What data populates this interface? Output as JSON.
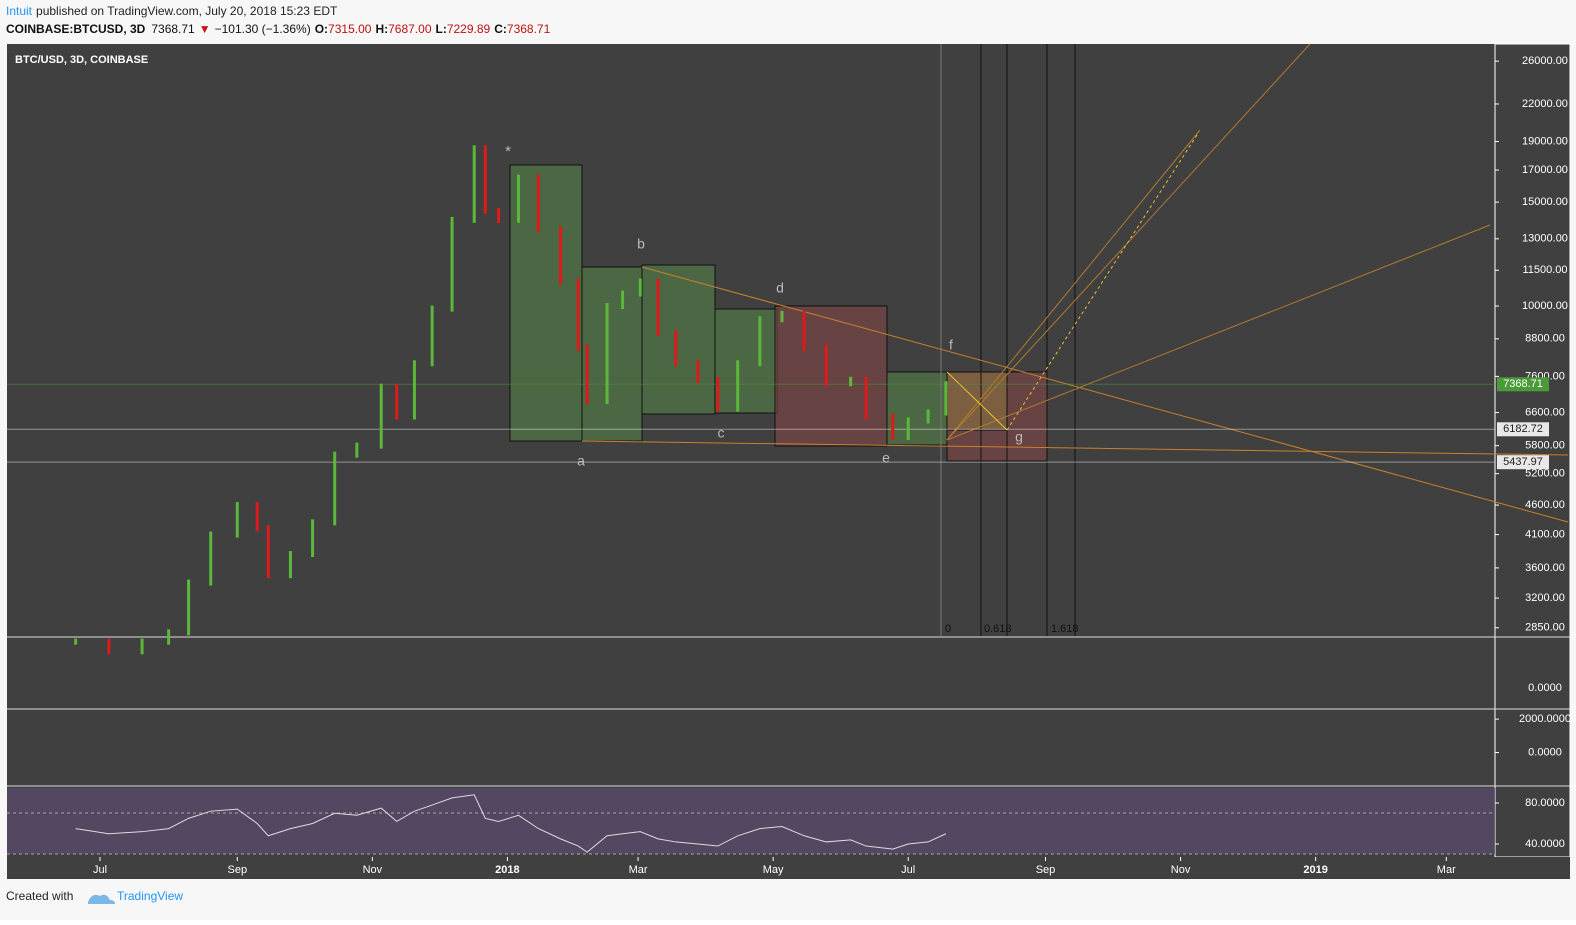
{
  "header": {
    "author": "Intuit",
    "published": "published on TradingView.com, July 20, 2018 15:23 EDT",
    "symbol": "COINBASE:BTCUSD, 3D",
    "last": "7368.71",
    "arrow": "▼",
    "change": "−101.30 (−1.36%)",
    "o_label": "O:",
    "open": "7315.00",
    "h_label": "H:",
    "high": "7687.00",
    "l_label": "L:",
    "low": "7229.89",
    "c_label": "C:",
    "close": "7368.71"
  },
  "chart_data": {
    "type": "line",
    "title": "BTC/USD, 3D, COINBASE",
    "log_scale": true,
    "x": [
      "2017-06-20",
      "2017-07-05",
      "2017-07-20",
      "2017-08-01",
      "2017-08-10",
      "2017-08-20",
      "2017-09-01",
      "2017-09-10",
      "2017-09-15",
      "2017-09-25",
      "2017-10-05",
      "2017-10-15",
      "2017-10-25",
      "2017-11-05",
      "2017-11-12",
      "2017-11-20",
      "2017-11-28",
      "2017-12-07",
      "2017-12-17",
      "2017-12-22",
      "2017-12-28",
      "2018-01-06",
      "2018-01-15",
      "2018-01-25",
      "2018-02-02",
      "2018-02-06",
      "2018-02-15",
      "2018-02-22",
      "2018-03-02",
      "2018-03-10",
      "2018-03-18",
      "2018-03-28",
      "2018-04-06",
      "2018-04-15",
      "2018-04-25",
      "2018-05-05",
      "2018-05-15",
      "2018-05-25",
      "2018-06-05",
      "2018-06-12",
      "2018-06-24",
      "2018-07-01",
      "2018-07-10",
      "2018-07-18"
    ],
    "values": [
      2700,
      2600,
      2700,
      2800,
      3400,
      4100,
      4600,
      4200,
      3500,
      3800,
      4300,
      5600,
      5800,
      7300,
      6500,
      8000,
      9900,
      14000,
      18500,
      14500,
      14000,
      16500,
      13500,
      11000,
      8500,
      6900,
      10000,
      10500,
      11000,
      9000,
      8000,
      7500,
      6700,
      8000,
      9500,
      9700,
      8500,
      7400,
      7500,
      6500,
      6000,
      6400,
      6600,
      7368.71
    ],
    "up_color": "#5cb83a",
    "down_color": "#e0191b",
    "xlim": [
      "2017-05-20",
      "2019-03-23"
    ],
    "xticks": [
      {
        "value": "2017-07-01",
        "label": "Jul"
      },
      {
        "value": "2017-09-01",
        "label": "Sep"
      },
      {
        "value": "2017-11-01",
        "label": "Nov"
      },
      {
        "value": "2018-01-01",
        "label": "2018"
      },
      {
        "value": "2018-03-01",
        "label": "Mar"
      },
      {
        "value": "2018-05-01",
        "label": "May"
      },
      {
        "value": "2018-07-01",
        "label": "Jul"
      },
      {
        "value": "2018-09-01",
        "label": "Sep"
      },
      {
        "value": "2018-11-01",
        "label": "Nov"
      },
      {
        "value": "2019-01-01",
        "label": "2019"
      },
      {
        "value": "2019-03-01",
        "label": "Mar"
      }
    ],
    "ylim": [
      2760,
      27800
    ],
    "yticks": [
      {
        "value": 26000,
        "label": "26000.00"
      },
      {
        "value": 22000,
        "label": "22000.00"
      },
      {
        "value": 19000,
        "label": "19000.00"
      },
      {
        "value": 17000,
        "label": "17000.00"
      },
      {
        "value": 15000,
        "label": "15000.00"
      },
      {
        "value": 13000,
        "label": "13000.00"
      },
      {
        "value": 11500,
        "label": "11500.00"
      },
      {
        "value": 10000,
        "label": "10000.00"
      },
      {
        "value": 8800,
        "label": "8800.00"
      },
      {
        "value": 7600,
        "label": "7600.00"
      },
      {
        "value": 6600,
        "label": "6600.00"
      },
      {
        "value": 5800,
        "label": "5800.00"
      },
      {
        "value": 5200,
        "label": "5200.00"
      },
      {
        "value": 4600,
        "label": "4600.00"
      },
      {
        "value": 4100,
        "label": "4100.00"
      },
      {
        "value": 3600,
        "label": "3600.00"
      },
      {
        "value": 3200,
        "label": "3200.00"
      },
      {
        "value": 2850,
        "label": "2850.00"
      }
    ],
    "price_lines": [
      {
        "value": 7368.71,
        "label": "7368.71",
        "color": "#4a9a3a"
      },
      {
        "value": 6182.72,
        "label": "6182.72",
        "color": "#e8e8e8"
      },
      {
        "value": 5437.97,
        "label": "5437.97",
        "color": "#e8e8e8"
      }
    ],
    "annotations": [
      "*",
      "a",
      "b",
      "c",
      "d",
      "e",
      "f",
      "g"
    ],
    "fib_labels": [
      "0",
      "0.618",
      "1.618"
    ],
    "rsi": {
      "values": [
        55,
        50,
        52,
        55,
        65,
        72,
        74,
        60,
        48,
        55,
        60,
        70,
        68,
        75,
        62,
        72,
        78,
        85,
        88,
        65,
        62,
        68,
        55,
        45,
        38,
        32,
        48,
        50,
        52,
        45,
        42,
        40,
        38,
        48,
        55,
        57,
        48,
        42,
        44,
        38,
        35,
        40,
        42,
        50
      ],
      "ylim": [
        27.3,
        95.6
      ],
      "yticks": [
        {
          "value": 80,
          "label": "80.0000"
        },
        {
          "value": 40,
          "label": "40.0000"
        }
      ]
    },
    "osc2": {
      "ylim": [
        -1940,
        2545
      ],
      "yticks": [
        {
          "value": 2000,
          "label": "2000.0000"
        },
        {
          "value": 0,
          "label": "0.0000"
        }
      ]
    },
    "osc1": {
      "ytick": "0.0000"
    }
  },
  "footer": {
    "created": "Created with",
    "brand": "TradingView"
  }
}
